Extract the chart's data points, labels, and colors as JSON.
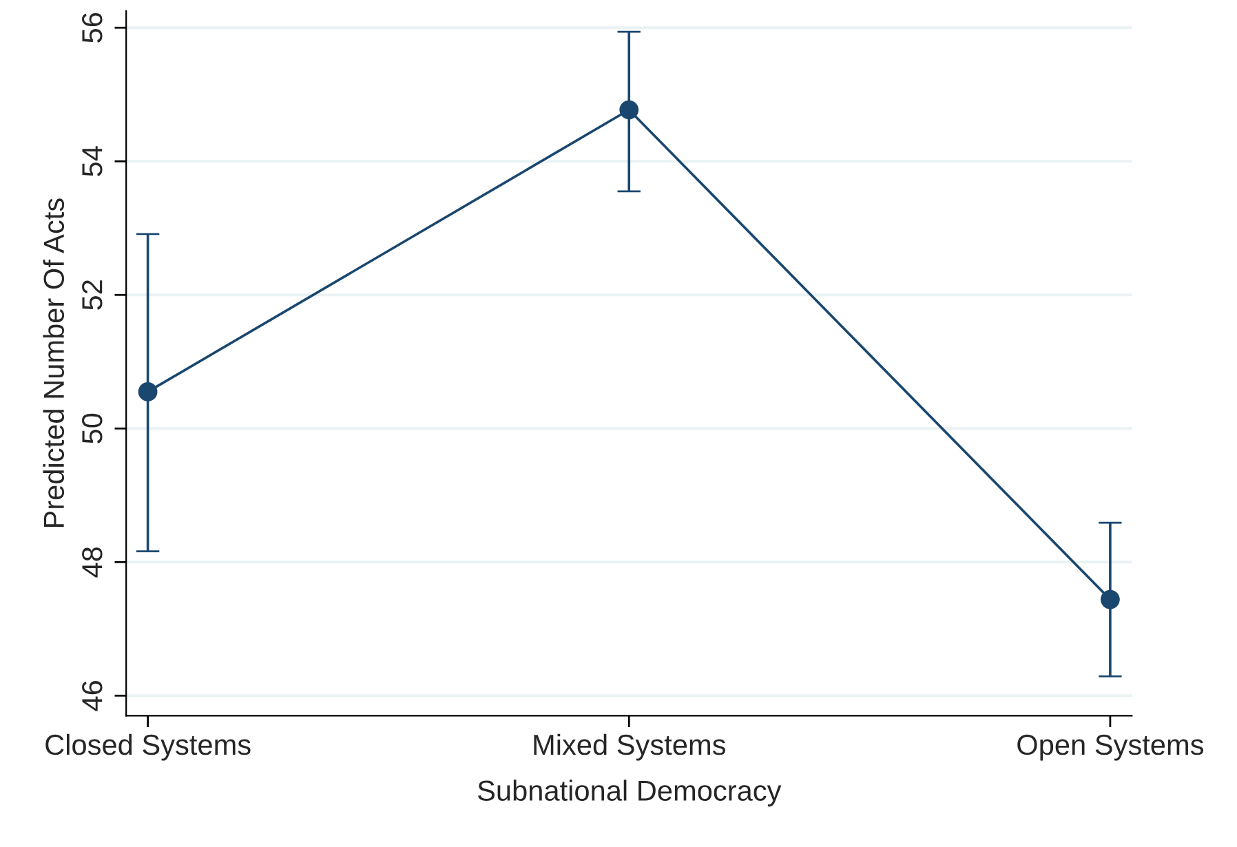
{
  "chart_data": {
    "type": "line",
    "xlabel": "Subnational Democracy",
    "ylabel": "Predicted Number Of Acts",
    "categories": [
      "Closed Systems",
      "Mixed Systems",
      "Open Systems"
    ],
    "series": [
      {
        "color": "#1a476f",
        "values": [
          50.55,
          54.77,
          47.44
        ],
        "errors": [
          [
            48.16,
            52.91
          ],
          [
            53.55,
            55.94
          ],
          [
            46.29,
            48.59
          ]
        ]
      }
    ],
    "ylim": [
      45.7,
      56.25
    ],
    "yticks": [
      46,
      48,
      50,
      52,
      54,
      56
    ],
    "grid": "y",
    "marker": "circle",
    "line_style": "solid"
  }
}
